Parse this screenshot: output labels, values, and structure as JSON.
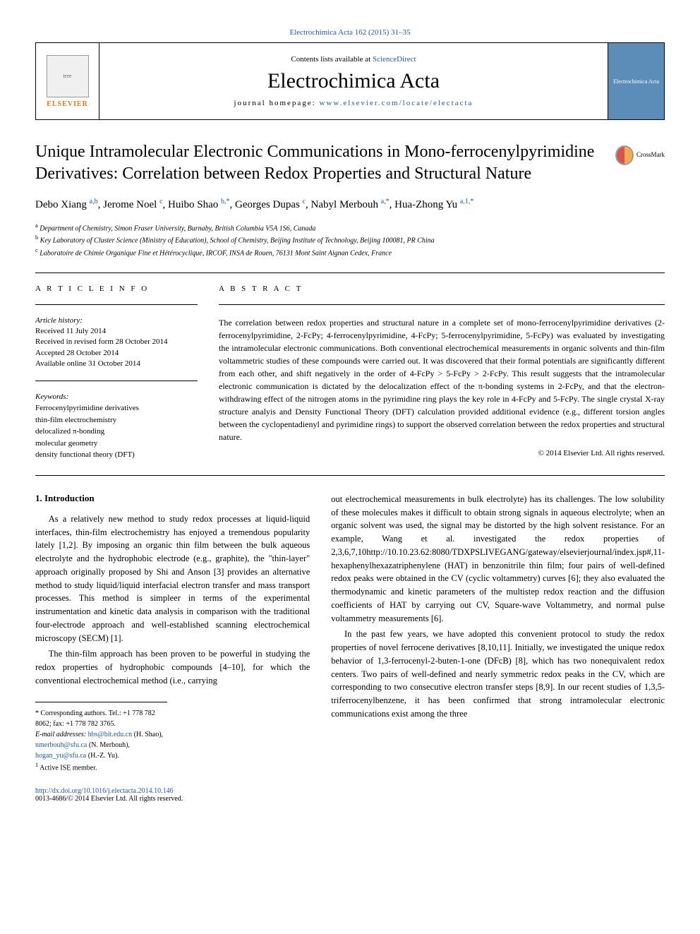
{
  "journal_ref": "Electrochimica Acta 162 (2015) 31–35",
  "header": {
    "contents_text": "Contents lists available at ",
    "sciencedirect": "ScienceDirect",
    "journal_name": "Electrochimica Acta",
    "homepage_label": "journal homepage: ",
    "homepage_url": "www.elsevier.com/locate/electacta",
    "elsevier": "ELSEVIER",
    "cover_text": "Electrochimica Acta"
  },
  "crossmark": "CrossMark",
  "title": "Unique Intramolecular Electronic Communications in Mono-ferrocenylpyrimidine Derivatives: Correlation between Redox Properties and Structural Nature",
  "authors_html": "Debo Xiang <sup>a,b</sup>, Jerome Noel <sup>c</sup>, Huibo Shao <sup>b,*</sup>, Georges Dupas <sup>c</sup>, Nabyl Merbouh <sup>a,*</sup>, Hua-Zhong Yu <sup>a,1,*</sup>",
  "affiliations": {
    "a": "Department of Chemistry, Simon Fraser University, Burnaby, British Columbia V5A 1S6, Canada",
    "b": "Key Laboratory of Cluster Science (Ministry of Education), School of Chemistry, Beijing Institute of Technology, Beijing 100081, PR China",
    "c": "Laboratoire de Chimie Organique Fine et Hétérocyclique, IRCOF, INSA de Rouen, 76131 Mont Saint Aignan Cedex, France"
  },
  "article_info": {
    "heading": "A R T I C L E   I N F O",
    "history_label": "Article history:",
    "history": "Received 11 July 2014\nReceived in revised form 28 October 2014\nAccepted 28 October 2014\nAvailable online 31 October 2014",
    "keywords_label": "Keywords:",
    "keywords": "Ferrocenylpyrimidine derivatives\nthin-film electrochemistry\ndelocalized π-bonding\nmolecular geometry\ndensity functional theory (DFT)"
  },
  "abstract": {
    "heading": "A B S T R A C T",
    "text": "The correlation between redox properties and structural nature in a complete set of mono-ferrocenylpyrimidine derivatives (2-ferrocenylpyrimidine, 2-FcPy; 4-ferrocenylpyrimidine, 4-FcPy; 5-ferrocenylpyrimidine, 5-FcPy) was evaluated by investigating the intramolecular electronic communications. Both conventional electrochemical measurements in organic solvents and thin-film voltammetric studies of these compounds were carried out. It was discovered that their formal potentials are significantly different from each other, and shift negatively in the order of 4-FcPy > 5-FcPy > 2-FcPy. This result suggests that the intramolecular electronic communication is dictated by the delocalization effect of the π-bonding systems in 2-FcPy, and that the electron-withdrawing effect of the nitrogen atoms in the pyrimidine ring plays the key role in 4-FcPy and 5-FcPy. The single crystal X-ray structure analyis and Density Functional Theory (DFT) calculation provided additional evidence (e.g., different torsion angles between the cyclopentadienyl and pyrimidine rings) to support the observed correlation between the redox properties and structural nature.",
    "copyright": "© 2014 Elsevier Ltd. All rights reserved."
  },
  "body": {
    "section1_heading": "1. Introduction",
    "col1_p1": "As a relatively new method to study redox processes at liquid-liquid interfaces, thin-film electrochemistry has enjoyed a tremendous popularity lately [1,2]. By imposing an organic thin film between the bulk aqueous electrolyte and the hydrophobic electrode (e.g., graphite), the \"thin-layer\" approach originally proposed by Shi and Anson [3] provides an alternative method to study liquid/liquid interfacial electron transfer and mass transport processes. This method is simpleer in terms of the experimental instrumentation and kinetic data analysis in comparison with the traditional four-electrode approach and well-established scanning electrochemical microscopy (SECM) [1].",
    "col1_p2": "The thin-film approach has been proven to be powerful in studying the redox properties of hydrophobic compounds [4–10], for which the conventional electrochemical method (i.e., carrying",
    "col2_p1": "out electrochemical measurements in bulk electrolyte) has its challenges. The low solubility of these molecules makes it difficult to obtain strong signals in aqueous electrolyte; when an organic solvent was used, the signal may be distorted by the high solvent resistance. For an example, Wang et al. investigated the redox properties of 2,3,6,7,10http://10.10.23.62:8080/TDXPSLIVEGANG/gateway/elsevierjournal/index.jsp#,11- hexaphenylhexazatriphenylene (HAT) in benzonitrile thin film; four pairs of well-defined redox peaks were obtained in the CV (cyclic voltammetry) curves [6]; they also evaluated the thermodynamic and kinetic parameters of the multistep redox reaction and the diffusion coefficients of HAT by carrying out CV, Square-wave Voltammetry, and normal pulse voltammetry measurements [6].",
    "col2_p2": "In the past few years, we have adopted this convenient protocol to study the redox properties of novel ferrocene derivatives [8,10,11]. Initially, we investigated the unique redox behavior of 1,3-ferrocenyl-2-buten-1-one (DFcB) [8], which has two nonequivalent redox centers. Two pairs of well-defined and nearly symmetric redox peaks in the CV, which are corresponding to two consecutive electron transfer steps [8,9]. In our recent studies of 1,3,5-triferrocenylbenzene, it has been confirmed that strong intramolecular electronic communications exist among the three"
  },
  "footnotes": {
    "corresponding": "Corresponding authors. Tel.: +1 778 782 8062; fax: +1 778 782 3765.",
    "email_label": "E-mail addresses: ",
    "email1": "hbs@bit.edu.cn",
    "email1_name": " (H. Shao), ",
    "email2": "nmerbouh@sfu.ca",
    "email2_name": " (N. Merbouh), ",
    "email3": "hogan_yu@sfu.ca",
    "email3_name": " (H.-Z. Yu).",
    "note1": "Active ISE member."
  },
  "footer": {
    "doi": "http://dx.doi.org/10.1016/j.electacta.2014.10.146",
    "issn": "0013-4686/© 2014 Elsevier Ltd. All rights reserved."
  },
  "colors": {
    "link": "#2359a6",
    "elsevier_orange": "#e67817",
    "cover_blue": "#5b8db8"
  }
}
